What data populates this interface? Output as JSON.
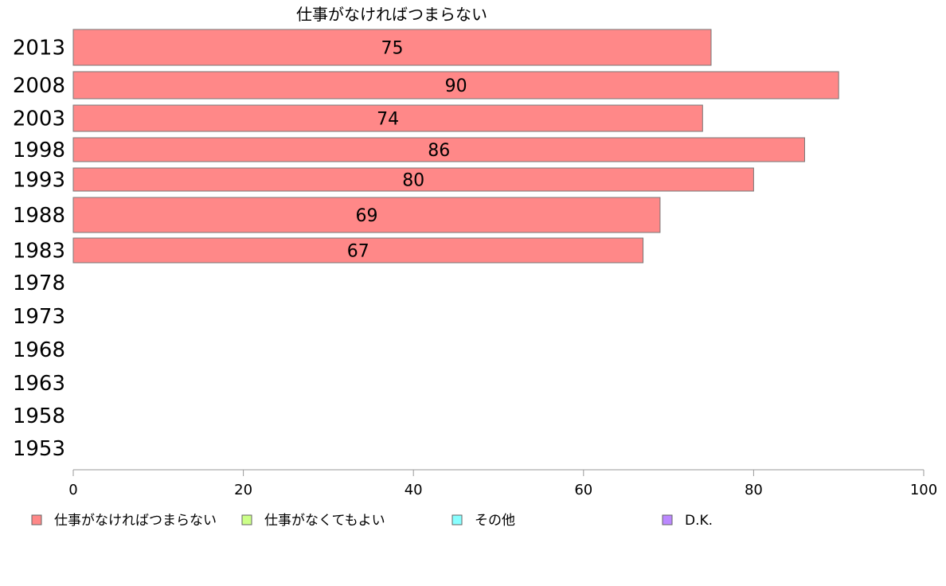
{
  "chart_data": {
    "type": "bar",
    "orientation": "horizontal",
    "title": "仕事がなければつまらない",
    "categories": [
      "2013",
      "2008",
      "2003",
      "1998",
      "1993",
      "1988",
      "1983",
      "1978",
      "1973",
      "1968",
      "1963",
      "1958",
      "1953"
    ],
    "series": [
      {
        "name": "仕事がなければつまらない",
        "values": [
          75,
          90,
          74,
          86,
          80,
          69,
          67,
          null,
          null,
          null,
          null,
          null,
          null
        ],
        "color": "#FF8888"
      }
    ],
    "data_labels": [
      "75",
      "90",
      "74",
      "86",
      "80",
      "69",
      "67",
      "",
      "",
      "",
      "",
      "",
      ""
    ],
    "xlim": [
      0,
      100
    ],
    "xticks": [
      0,
      20,
      40,
      60,
      80,
      100
    ],
    "grid": false,
    "legend_position": "bottom",
    "legend": [
      {
        "label": "仕事がなければつまらない",
        "color": "#FF8888"
      },
      {
        "label": "仕事がなくてもよい",
        "color": "#CCFF88"
      },
      {
        "label": "その他",
        "color": "#88FFFF"
      },
      {
        "label": "D.K.",
        "color": "#BB88FF"
      }
    ]
  }
}
